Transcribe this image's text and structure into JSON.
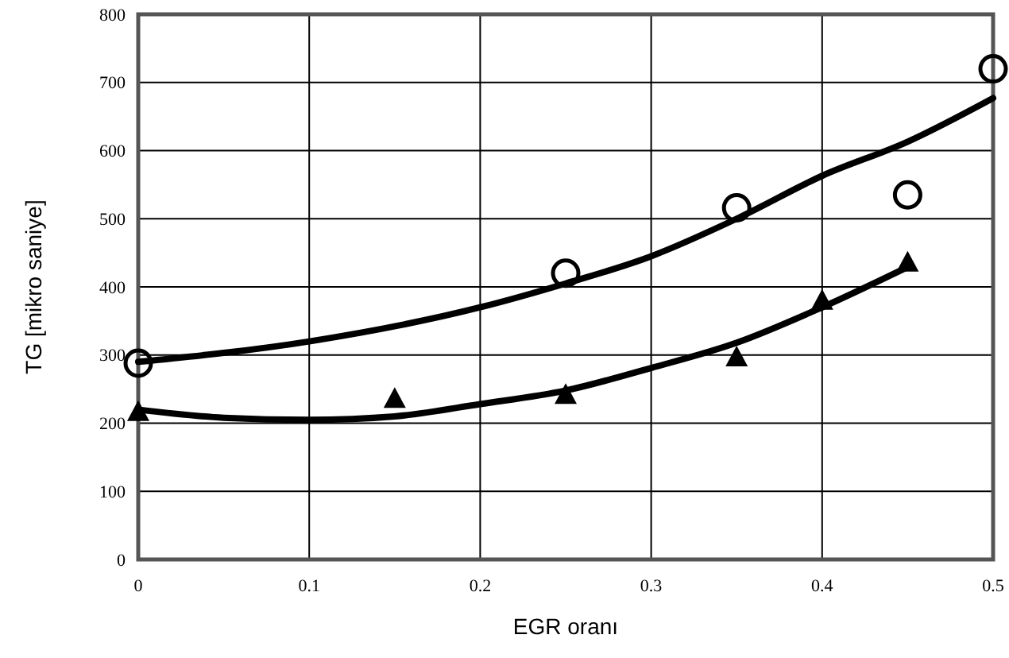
{
  "chart_data": {
    "type": "scatter",
    "xlabel": "EGR oranı",
    "ylabel": "TG [mikro saniye]",
    "xlim": [
      0,
      0.5
    ],
    "xticks": [
      0,
      0.1,
      0.2,
      0.3,
      0.4,
      0.5
    ],
    "ylim": [
      0,
      800
    ],
    "yticks": [
      0,
      100,
      200,
      300,
      400,
      500,
      600,
      700,
      800
    ],
    "grid": true,
    "series": [
      {
        "marker": "circle",
        "color": "#000000",
        "x": [
          0,
          0.25,
          0.35,
          0.45,
          0.5
        ],
        "values": [
          288,
          420,
          516,
          535,
          720
        ]
      },
      {
        "marker": "triangle",
        "color": "#000000",
        "x": [
          0,
          0.15,
          0.25,
          0.35,
          0.4,
          0.45
        ],
        "values": [
          215,
          234,
          240,
          295,
          378,
          434
        ]
      },
      {
        "type": "line",
        "color": "#000000",
        "marker": "none",
        "x": [
          0,
          0.1,
          0.2,
          0.25,
          0.3,
          0.35,
          0.4,
          0.45,
          0.5
        ],
        "values": [
          290,
          320,
          370,
          405,
          445,
          500,
          563,
          613,
          677
        ]
      },
      {
        "type": "line",
        "color": "#000000",
        "marker": "none",
        "x": [
          0,
          0.05,
          0.1,
          0.15,
          0.2,
          0.25,
          0.3,
          0.35,
          0.4,
          0.45
        ],
        "values": [
          220,
          208,
          205,
          210,
          228,
          248,
          281,
          318,
          370,
          429
        ]
      }
    ]
  }
}
